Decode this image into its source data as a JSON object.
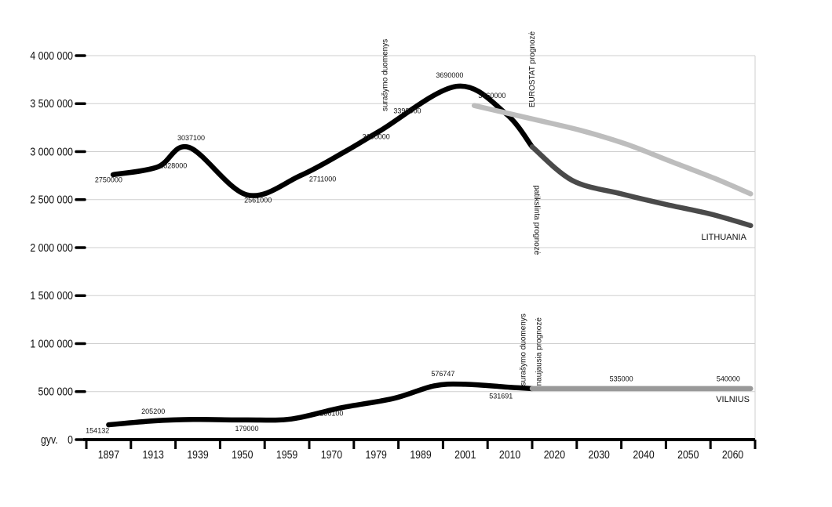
{
  "chart_data": {
    "type": "line",
    "y_unit_label": "gyv.",
    "ylim": [
      0,
      4000000
    ],
    "y_ticks": [
      {
        "value": 0,
        "label": "0"
      },
      {
        "value": 500000,
        "label": "500 000"
      },
      {
        "value": 1000000,
        "label": "1 000 000"
      },
      {
        "value": 1500000,
        "label": "1 500 000"
      },
      {
        "value": 2000000,
        "label": "2 000 000"
      },
      {
        "value": 2500000,
        "label": "2 500 000"
      },
      {
        "value": 3000000,
        "label": "3 000 000"
      },
      {
        "value": 3500000,
        "label": "3 500 000"
      },
      {
        "value": 4000000,
        "label": "4 000 000"
      }
    ],
    "categories": [
      "1897",
      "1913",
      "1939",
      "1950",
      "1959",
      "1970",
      "1979",
      "1989",
      "2001",
      "2010",
      "2020",
      "2030",
      "2040",
      "2050",
      "2060"
    ],
    "grid": true,
    "series": [
      {
        "name": "LITHUANIA",
        "segment": "census",
        "color": "#000000",
        "points": [
          [
            0.1,
            2760000
          ],
          [
            1.1,
            2840000
          ],
          [
            1.8,
            3045000
          ],
          [
            3.1,
            2550000
          ],
          [
            4.3,
            2750000
          ],
          [
            5.3,
            3000000
          ],
          [
            6.1,
            3220000
          ],
          [
            7.8,
            3680000
          ],
          [
            8.9,
            3400000
          ],
          [
            9.5,
            3050000
          ]
        ]
      },
      {
        "name": "",
        "segment": "adjusted forecast",
        "color": "#4a4a4a",
        "points": [
          [
            9.5,
            3050000
          ],
          [
            10.4,
            2700000
          ],
          [
            11.5,
            2560000
          ],
          [
            12.5,
            2450000
          ],
          [
            13.5,
            2350000
          ],
          [
            14.4,
            2230000
          ]
        ]
      },
      {
        "name": "",
        "segment": "EUROSTAT forecast",
        "color": "#bdbdbd",
        "points": [
          [
            8.2,
            3480000
          ],
          [
            9.6,
            3330000
          ],
          [
            10.6,
            3220000
          ],
          [
            11.6,
            3080000
          ],
          [
            12.6,
            2900000
          ],
          [
            13.6,
            2720000
          ],
          [
            14.4,
            2560000
          ]
        ]
      },
      {
        "name": "VILNIUS",
        "segment": "census",
        "color": "#000000",
        "points": [
          [
            0,
            154132
          ],
          [
            1.0,
            195000
          ],
          [
            1.9,
            210000
          ],
          [
            3.1,
            205000
          ],
          [
            4.1,
            215000
          ],
          [
            5.2,
            330000
          ],
          [
            6.4,
            430000
          ],
          [
            7.3,
            560000
          ],
          [
            8.0,
            576747
          ],
          [
            9.0,
            545000
          ],
          [
            9.5,
            531691
          ]
        ]
      },
      {
        "name": "",
        "segment": "newest forecast",
        "color": "#999999",
        "points": [
          [
            9.5,
            531691
          ],
          [
            14.4,
            531691
          ]
        ]
      }
    ],
    "data_labels": [
      {
        "text": "2750000",
        "x": 0.0,
        "y": 2680000
      },
      {
        "text": "2828000",
        "x": 1.45,
        "y": 2830000
      },
      {
        "text": "3037100",
        "x": 1.85,
        "y": 3120000
      },
      {
        "text": "2561000",
        "x": 3.35,
        "y": 2470000
      },
      {
        "text": "2711000",
        "x": 4.8,
        "y": 2690000
      },
      {
        "text": "3100000",
        "x": 6.0,
        "y": 3130000
      },
      {
        "text": "3398000",
        "x": 6.7,
        "y": 3400000
      },
      {
        "text": "3690000",
        "x": 7.65,
        "y": 3770000
      },
      {
        "text": "3460000",
        "x": 8.6,
        "y": 3560000
      },
      {
        "text": "154132",
        "x": -0.25,
        "y": 70000
      },
      {
        "text": "205200",
        "x": 1.0,
        "y": 270000
      },
      {
        "text": "179000",
        "x": 3.1,
        "y": 90000
      },
      {
        "text": "236100",
        "x": 5.0,
        "y": 250000
      },
      {
        "text": "576747",
        "x": 7.5,
        "y": 660000
      },
      {
        "text": "531691",
        "x": 8.8,
        "y": 430000
      },
      {
        "text": "535000",
        "x": 11.5,
        "y": 610000
      },
      {
        "text": "540000",
        "x": 13.9,
        "y": 610000
      }
    ],
    "annotations": [
      {
        "text": "surašymo duomenys",
        "x": 6.25,
        "y": 3420000,
        "rotate": -90
      },
      {
        "text": "EUROSTAT prognozė",
        "x": 9.55,
        "y": 3460000,
        "rotate": -90
      },
      {
        "text": "patikslinta prognozė",
        "x": 9.55,
        "y": 2650000,
        "rotate": 90
      },
      {
        "text": "surašymo duomenys",
        "x": 9.35,
        "y": 560000,
        "rotate": -90
      },
      {
        "text": "naujausia prognozė",
        "x": 9.7,
        "y": 560000,
        "rotate": -90
      }
    ],
    "series_labels": [
      {
        "text": "LITHUANIA",
        "x": 13.8,
        "y": 2080000
      },
      {
        "text": "VILNIUS",
        "x": 14.0,
        "y": 390000
      }
    ]
  }
}
